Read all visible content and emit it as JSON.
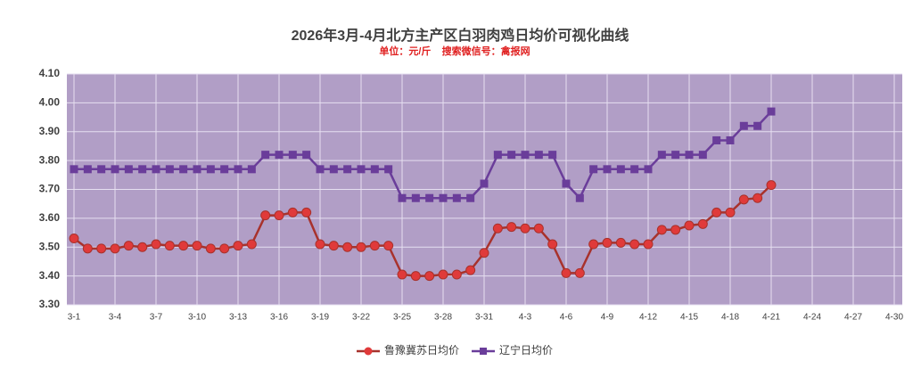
{
  "chart_data": {
    "type": "line",
    "title": "2026年3月-4月北方主产区白羽肉鸡日均价可视化曲线",
    "subtitle": "单位：元/斤    搜索微信号：禽报网",
    "categories": [
      "3-1",
      null,
      null,
      "3-4",
      null,
      null,
      "3-7",
      null,
      null,
      "3-10",
      null,
      null,
      "3-13",
      null,
      null,
      "3-16",
      null,
      null,
      "3-19",
      null,
      null,
      "3-22",
      null,
      null,
      "3-25",
      null,
      null,
      "3-28",
      null,
      null,
      "3-31",
      null,
      null,
      "4-3",
      null,
      null,
      "4-6",
      null,
      null,
      "4-9",
      null,
      null,
      "4-12",
      null,
      null,
      "4-15",
      null,
      null,
      "4-18",
      null,
      null,
      "4-21",
      null,
      null,
      "4-24",
      null,
      null,
      "4-27",
      null,
      null,
      "4-30"
    ],
    "series": [
      {
        "name": "鲁豫冀苏日均价",
        "color": "#a8322c",
        "marker": "circle",
        "marker_color": "#e03a3a",
        "values": [
          3.53,
          3.495,
          3.495,
          3.495,
          3.505,
          3.5,
          3.51,
          3.505,
          3.505,
          3.505,
          3.495,
          3.495,
          3.505,
          3.51,
          3.61,
          3.61,
          3.62,
          3.62,
          3.51,
          3.505,
          3.5,
          3.5,
          3.505,
          3.505,
          3.405,
          3.4,
          3.4,
          3.405,
          3.405,
          3.42,
          3.48,
          3.565,
          3.57,
          3.565,
          3.565,
          3.51,
          3.41,
          3.41,
          3.51,
          3.515,
          3.515,
          3.51,
          3.51,
          3.56,
          3.56,
          3.575,
          3.58,
          3.62,
          3.62,
          3.665,
          3.67,
          3.715,
          null,
          null,
          null,
          null,
          null,
          null,
          null,
          null,
          null
        ]
      },
      {
        "name": "辽宁日均价",
        "color": "#6a3d9a",
        "marker": "square",
        "marker_color": "#6a3d9a",
        "values": [
          3.77,
          3.77,
          3.77,
          3.77,
          3.77,
          3.77,
          3.77,
          3.77,
          3.77,
          3.77,
          3.77,
          3.77,
          3.77,
          3.77,
          3.82,
          3.82,
          3.82,
          3.82,
          3.77,
          3.77,
          3.77,
          3.77,
          3.77,
          3.77,
          3.67,
          3.67,
          3.67,
          3.67,
          3.67,
          3.67,
          3.72,
          3.82,
          3.82,
          3.82,
          3.82,
          3.82,
          3.72,
          3.67,
          3.77,
          3.77,
          3.77,
          3.77,
          3.77,
          3.82,
          3.82,
          3.82,
          3.82,
          3.87,
          3.87,
          3.92,
          3.92,
          3.97,
          null,
          null,
          null,
          null,
          null,
          null,
          null,
          null,
          null
        ]
      }
    ],
    "ylim": [
      3.3,
      4.1
    ],
    "yticks": [
      {
        "value": 3.3,
        "label": "3.30"
      },
      {
        "value": 3.4,
        "label": "3.40"
      },
      {
        "value": 3.5,
        "label": "3.50"
      },
      {
        "value": 3.6,
        "label": "3.60"
      },
      {
        "value": 3.7,
        "label": "3.70"
      },
      {
        "value": 3.8,
        "label": "3.80"
      },
      {
        "value": 3.9,
        "label": "3.90"
      },
      {
        "value": 4.0,
        "label": "4.00"
      },
      {
        "value": 4.1,
        "label": "4.10"
      }
    ],
    "grid": true,
    "legend": "bottom"
  }
}
